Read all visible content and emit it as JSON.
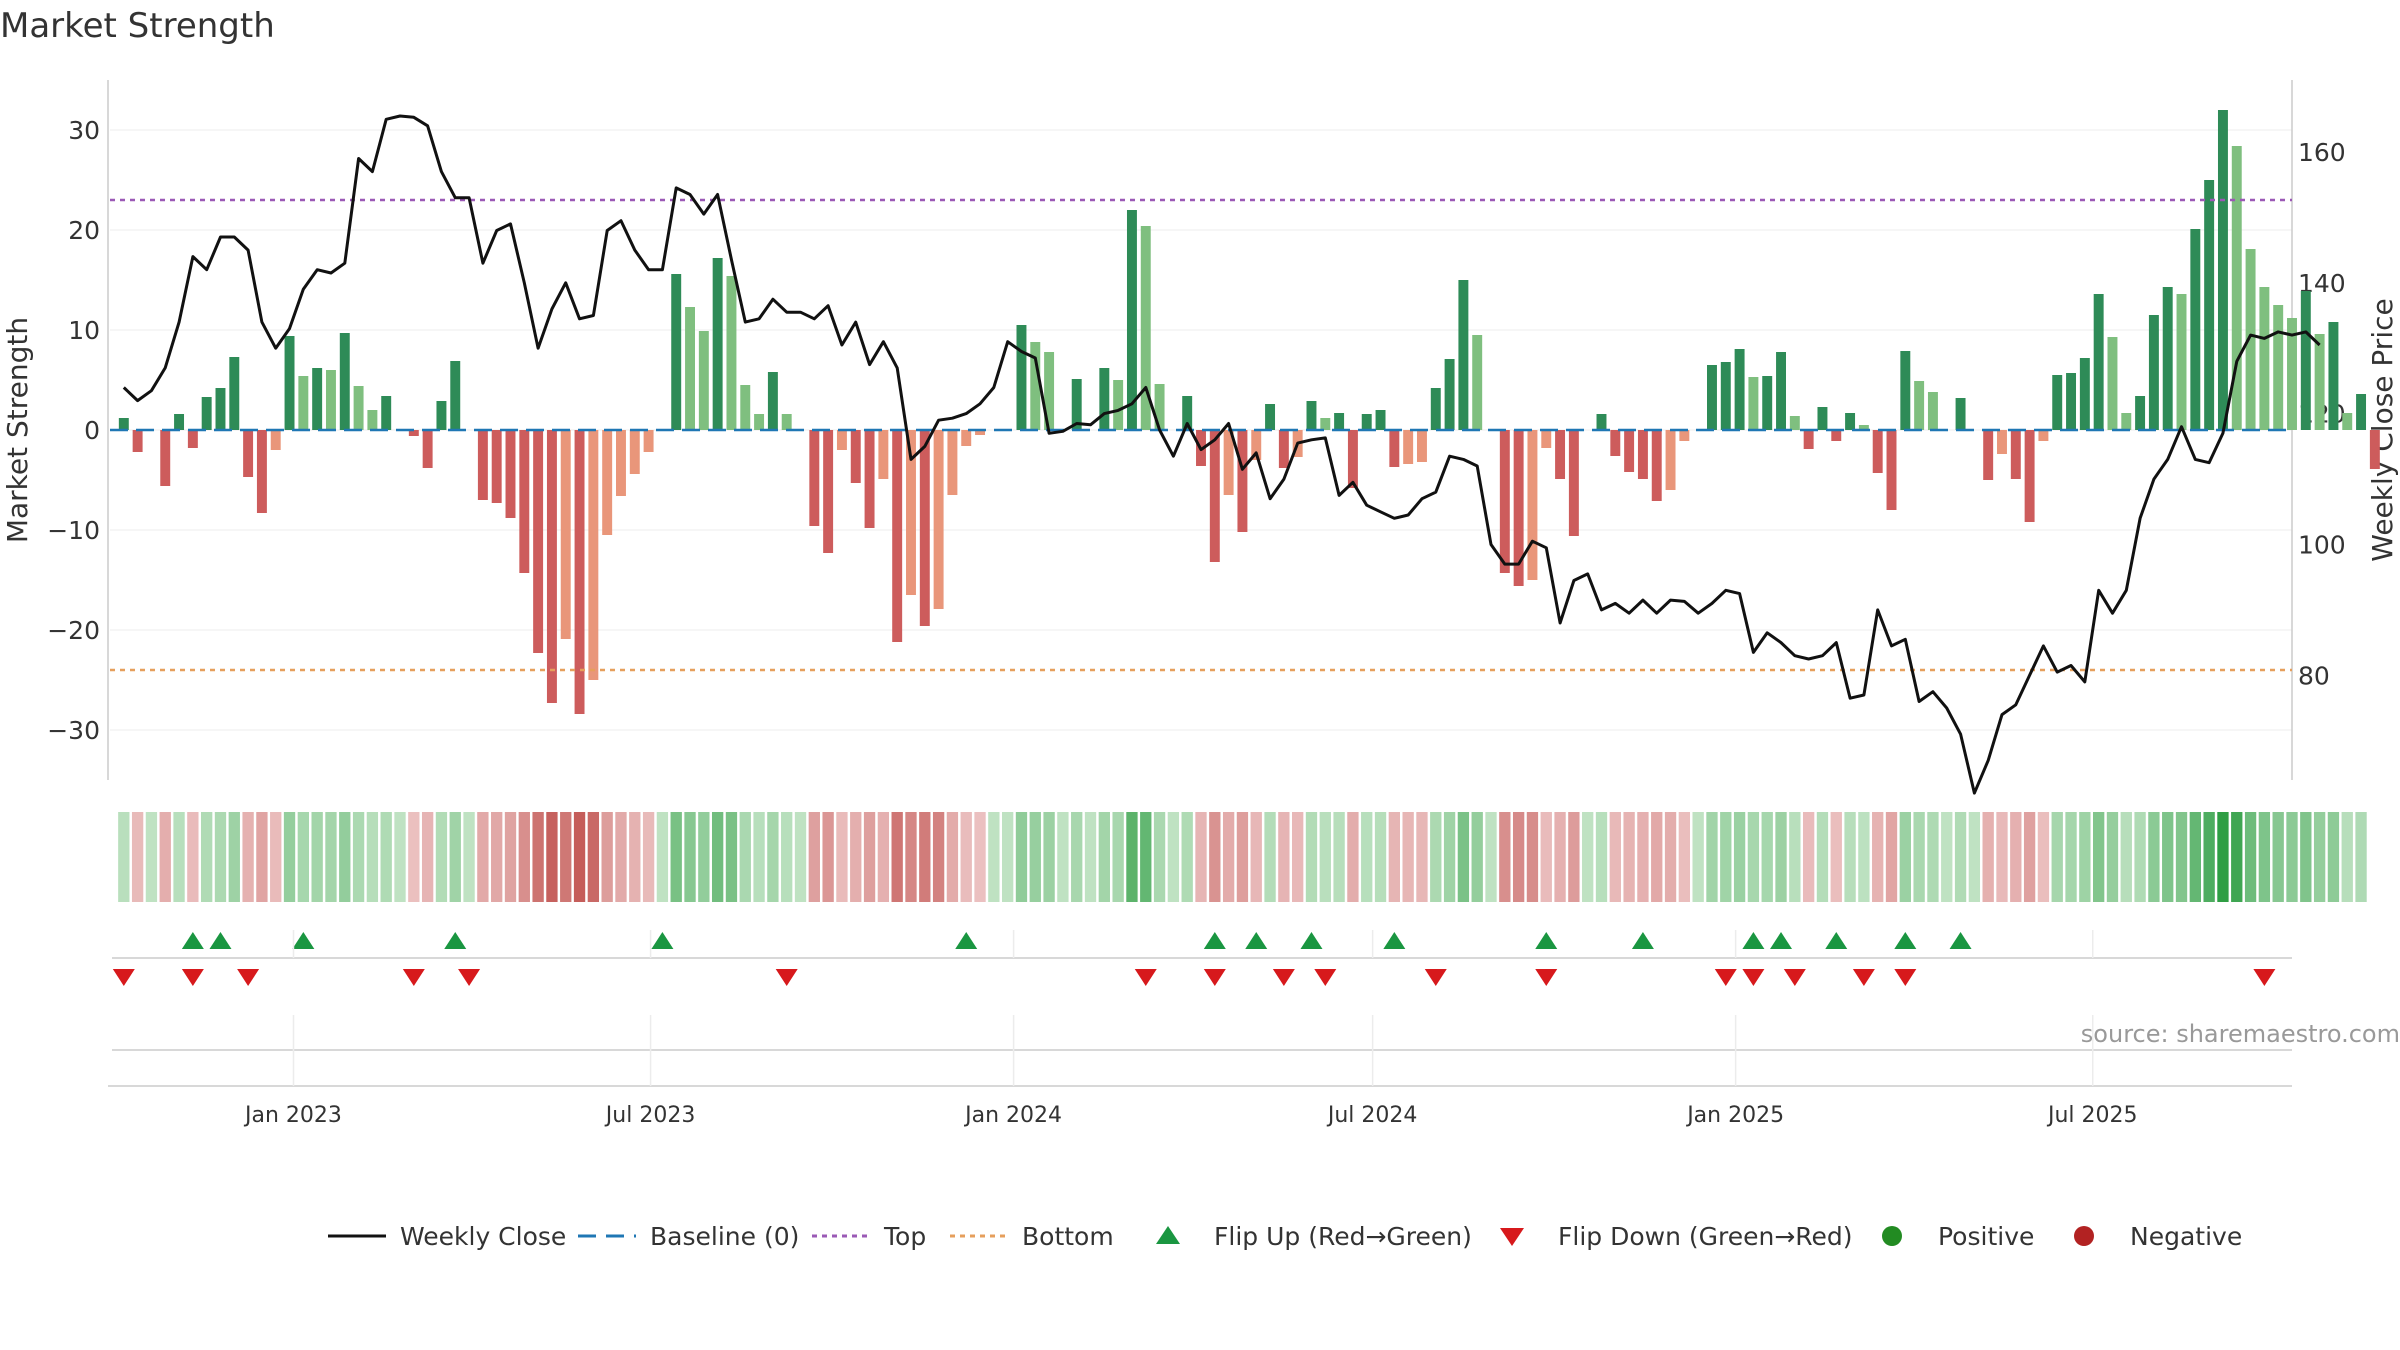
{
  "title": "Market Strength",
  "source": "source: sharemaestro.com",
  "colors": {
    "pos_dark": "#2e8b57",
    "pos_light": "#7fbf7f",
    "neg_dark": "#cd5c5c",
    "neg_light": "#e9967a",
    "price_line": "#111111",
    "baseline": "#1f77b4",
    "top_line": "#9b59b6",
    "bottom_line": "#e69f5c",
    "flip_up": "#1a9641",
    "flip_down": "#d7191c",
    "positive": "#228b22",
    "negative": "#b22222"
  },
  "chart_data": {
    "type": "bar",
    "y_left_label": "Market Strength",
    "y_right_label": "Weekly Close Price",
    "y_left_ticks": [
      30,
      20,
      10,
      0,
      -10,
      -20,
      -30
    ],
    "y_left_tick_labels": [
      "30",
      "20",
      "10",
      "0",
      "−10",
      "−20",
      "−30"
    ],
    "y_right_ticks": [
      160,
      140,
      120,
      100,
      80
    ],
    "x_ticks": [
      {
        "date": "2023-01-01",
        "label": "Jan 2023"
      },
      {
        "date": "2023-07-01",
        "label": "Jul 2023"
      },
      {
        "date": "2024-01-01",
        "label": "Jan 2024"
      },
      {
        "date": "2024-07-01",
        "label": "Jul 2024"
      },
      {
        "date": "2025-01-01",
        "label": "Jan 2025"
      },
      {
        "date": "2025-07-01",
        "label": "Jul 2025"
      }
    ],
    "x_range": [
      "2022-09-30",
      "2025-10-10"
    ],
    "y_left_range": [
      -35,
      35
    ],
    "y_right_range": [
      64,
      171
    ],
    "top_level": 23,
    "bottom_level": -24,
    "baseline_level": 0,
    "start_date": "2022-10-07",
    "strength": [
      1.2,
      -2.2,
      0,
      -5.6,
      1.6,
      -1.8,
      3.3,
      4.2,
      7.3,
      -4.7,
      -8.3,
      -2.0,
      9.4,
      5.4,
      6.2,
      6.0,
      9.7,
      4.4,
      2.0,
      3.4,
      0,
      -0.6,
      -3.8,
      2.9,
      6.9,
      0,
      -7.0,
      -7.3,
      -8.8,
      -14.3,
      -22.3,
      -27.3,
      -20.9,
      -28.4,
      -25.0,
      -10.5,
      -6.6,
      -4.4,
      -2.2,
      0,
      15.6,
      12.3,
      9.9,
      17.2,
      15.4,
      4.5,
      1.6,
      5.8,
      1.6,
      0,
      -9.6,
      -12.3,
      -2.0,
      -5.3,
      -9.8,
      -4.9,
      -21.2,
      -16.5,
      -19.6,
      -17.9,
      -6.5,
      -1.6,
      -0.5,
      0,
      0,
      10.5,
      8.8,
      7.8,
      0,
      5.1,
      0,
      6.2,
      5.0,
      22.0,
      20.4,
      4.6,
      0,
      3.4,
      -3.6,
      -13.2,
      -6.5,
      -10.2,
      -3.0,
      2.6,
      -3.8,
      -2.7,
      2.9,
      1.2,
      1.7,
      -5.8,
      1.6,
      2.0,
      -3.7,
      -3.4,
      -3.2,
      4.2,
      7.1,
      15.0,
      9.5,
      0,
      -14.3,
      -15.6,
      -15.0,
      -1.8,
      -4.9,
      -10.6,
      0,
      1.6,
      -2.6,
      -4.2,
      -4.9,
      -7.1,
      -6.0,
      -1.1,
      0,
      6.5,
      6.8,
      8.1,
      5.3,
      5.4,
      7.8,
      1.4,
      -1.9,
      2.3,
      -1.1,
      1.7,
      0.5,
      -4.3,
      -8.0,
      7.9,
      4.9,
      3.8,
      0,
      3.2,
      0,
      -5.0,
      -2.4,
      -4.9,
      -9.2,
      -1.1,
      5.5,
      5.7,
      7.2,
      13.6,
      9.3,
      1.7,
      3.4,
      11.5,
      14.3,
      13.6,
      20.1,
      25.0,
      32.0,
      28.4,
      18.1,
      14.3,
      12.5,
      11.2,
      13.9,
      9.6,
      10.8,
      1.7,
      3.6,
      -3.9
    ],
    "price": [
      124,
      122,
      123.5,
      127,
      134,
      144,
      142,
      147,
      147,
      145,
      134,
      130,
      133,
      139,
      142,
      141.5,
      143,
      159,
      157,
      165,
      165.5,
      165.3,
      164,
      157,
      153,
      153,
      143,
      148,
      149,
      140,
      130,
      136,
      140,
      134.5,
      135,
      148,
      149.5,
      145,
      142,
      142,
      154.5,
      153.5,
      150.5,
      153.5,
      143.5,
      134,
      134.5,
      137.5,
      135.5,
      135.5,
      134.5,
      136.5,
      130.5,
      134,
      127.5,
      131,
      127,
      113,
      115,
      119,
      119.3,
      120,
      121.5,
      124,
      131,
      129.5,
      128.5,
      117,
      117.3,
      118.5,
      118.3,
      120,
      120.5,
      121.5,
      124,
      117.5,
      113.5,
      118.5,
      114.5,
      116,
      118.5,
      111.5,
      114,
      107,
      110,
      115.5,
      116,
      116.3,
      107.5,
      109.5,
      106,
      105,
      104,
      104.5,
      107,
      108,
      113.5,
      113,
      112,
      100,
      97,
      97,
      100.5,
      99.5,
      88,
      94.5,
      95.5,
      90,
      91,
      89.5,
      91.5,
      89.5,
      91.5,
      91.3,
      89.5,
      91,
      93,
      92.5,
      83.5,
      86.5,
      85,
      83,
      82.5,
      83,
      85,
      76.5,
      77,
      90,
      84.5,
      85.5,
      76,
      77.5,
      75,
      71,
      62,
      67,
      74,
      75.5,
      80,
      84.5,
      80.5,
      81.5,
      79,
      93,
      89.5,
      93,
      104,
      110,
      113,
      118,
      113,
      112.5,
      117,
      128,
      132,
      131.5,
      132.5,
      132,
      132.5,
      130.5
    ],
    "heat_count": 163,
    "flip_up_weeks": [
      5,
      7,
      13,
      24,
      39,
      61,
      79,
      82,
      86,
      92,
      103,
      110,
      118,
      120,
      124,
      129,
      133
    ],
    "flip_down_weeks": [
      0,
      5,
      9,
      21,
      25,
      48,
      74,
      79,
      84,
      87,
      95,
      103,
      116,
      118,
      121,
      126,
      129,
      155
    ],
    "legend": [
      {
        "label": "Weekly Close",
        "icon": "line-icon"
      },
      {
        "label": "Baseline (0)",
        "icon": "dash-icon"
      },
      {
        "label": "Top",
        "icon": "dot-line-icon"
      },
      {
        "label": "Bottom",
        "icon": "dot-line-icon"
      },
      {
        "label": "Flip Up (Red→Green)",
        "icon": "triangle-up-icon"
      },
      {
        "label": "Flip Down (Green→Red)",
        "icon": "triangle-down-icon"
      },
      {
        "label": "Positive",
        "icon": "circle-icon"
      },
      {
        "label": "Negative",
        "icon": "circle-icon"
      }
    ],
    "grid": true,
    "legend_position": "bottom-center"
  }
}
